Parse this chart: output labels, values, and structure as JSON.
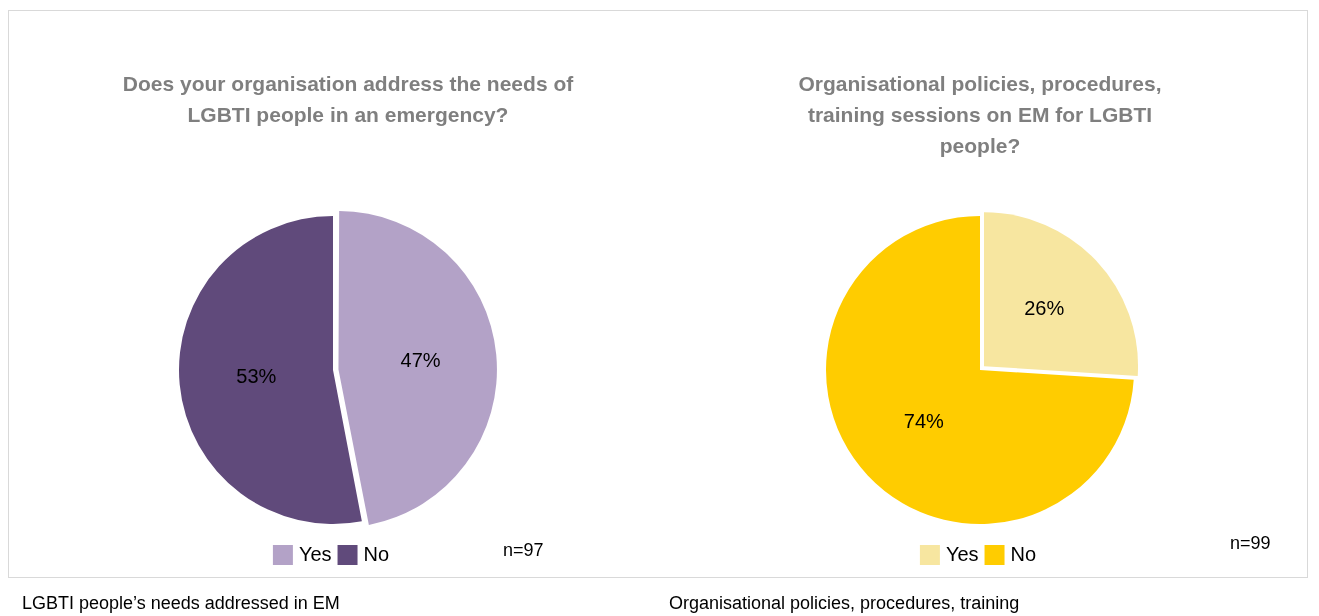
{
  "chart_data": [
    {
      "type": "pie",
      "title": "Does your organisation address the needs of LGBTI people in an emergency?",
      "categories": [
        "Yes",
        "No"
      ],
      "values": [
        47,
        53
      ],
      "colors": [
        "#b3a2c7",
        "#604a7b"
      ],
      "value_labels": [
        "47%",
        "53%"
      ],
      "legend": "bottom",
      "annotations": [
        "n=97",
        "LGBTI people’s needs addressed in EM"
      ]
    },
    {
      "type": "pie",
      "title": "Organisational policies, procedures, training sessions on EM for LGBTI people?",
      "categories": [
        "Yes",
        "No"
      ],
      "values": [
        26,
        74
      ],
      "colors": [
        "#f7e6a0",
        "#ffcc00"
      ],
      "value_labels": [
        "26%",
        "74%"
      ],
      "legend": "bottom",
      "annotations": [
        "n=99",
        "Organisational policies, procedures, training"
      ]
    }
  ]
}
